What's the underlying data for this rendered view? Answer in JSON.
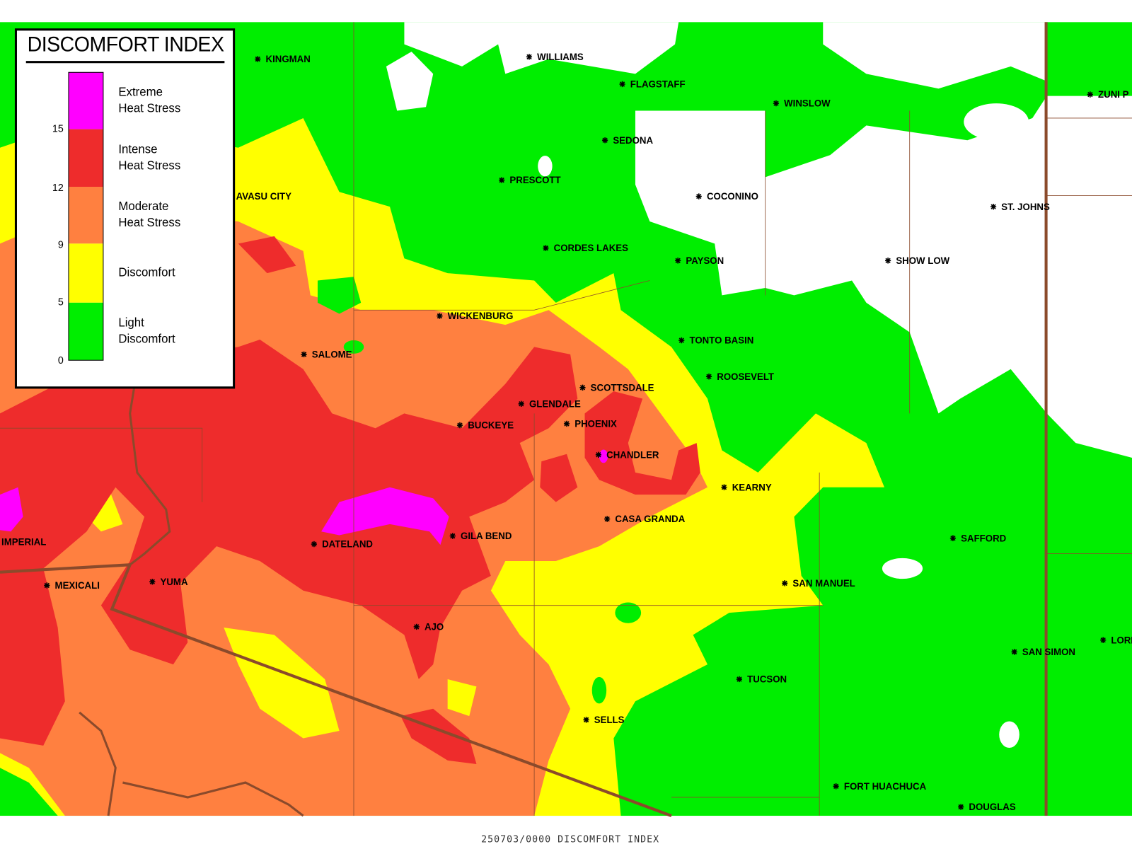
{
  "legend": {
    "title": "DISCOMFORT INDEX",
    "classes": [
      {
        "label": [
          "Extreme",
          "Heat Stress"
        ],
        "color": "#ff00ff"
      },
      {
        "label": [
          "Intense",
          "Heat Stress"
        ],
        "color": "#ee2c2c"
      },
      {
        "label": [
          "Moderate",
          "Heat Stress"
        ],
        "color": "#ff8040"
      },
      {
        "label": [
          "Discomfort"
        ],
        "color": "#ffff00"
      },
      {
        "label": [
          "Light",
          "Discomfort"
        ],
        "color": "#00ee00"
      }
    ],
    "ticks": [
      15,
      12,
      9,
      5,
      0
    ]
  },
  "cities": [
    "KINGMAN",
    "WILLIAMS",
    "FLAGSTAFF",
    "WINSLOW",
    "ZUNI P",
    "SEDONA",
    "PRESCOTT",
    "COCONINO",
    "AVASU CITY",
    "ST. JOHNS",
    "CORDES LAKES",
    "PAYSON",
    "SHOW LOW",
    "WICKENBURG",
    "TONTO BASIN",
    "SALOME",
    "ROOSEVELT",
    "SCOTTSDALE",
    "GLENDALE",
    "BUCKEYE",
    "PHOENIX",
    "CHANDLER",
    "KEARNY",
    "CASA GRANDA",
    "GILA BEND",
    "SAFFORD",
    "IMPERIAL",
    "DATELAND",
    "SAN MANUEL",
    "MEXICALI",
    "YUMA",
    "AJO",
    "SAN SIMON",
    "LORD",
    "TUCSON",
    "SELLS",
    "FORT HUACHUCA",
    "DOUGLAS"
  ],
  "footer": "250703/0000 DISCOMFORT INDEX"
}
